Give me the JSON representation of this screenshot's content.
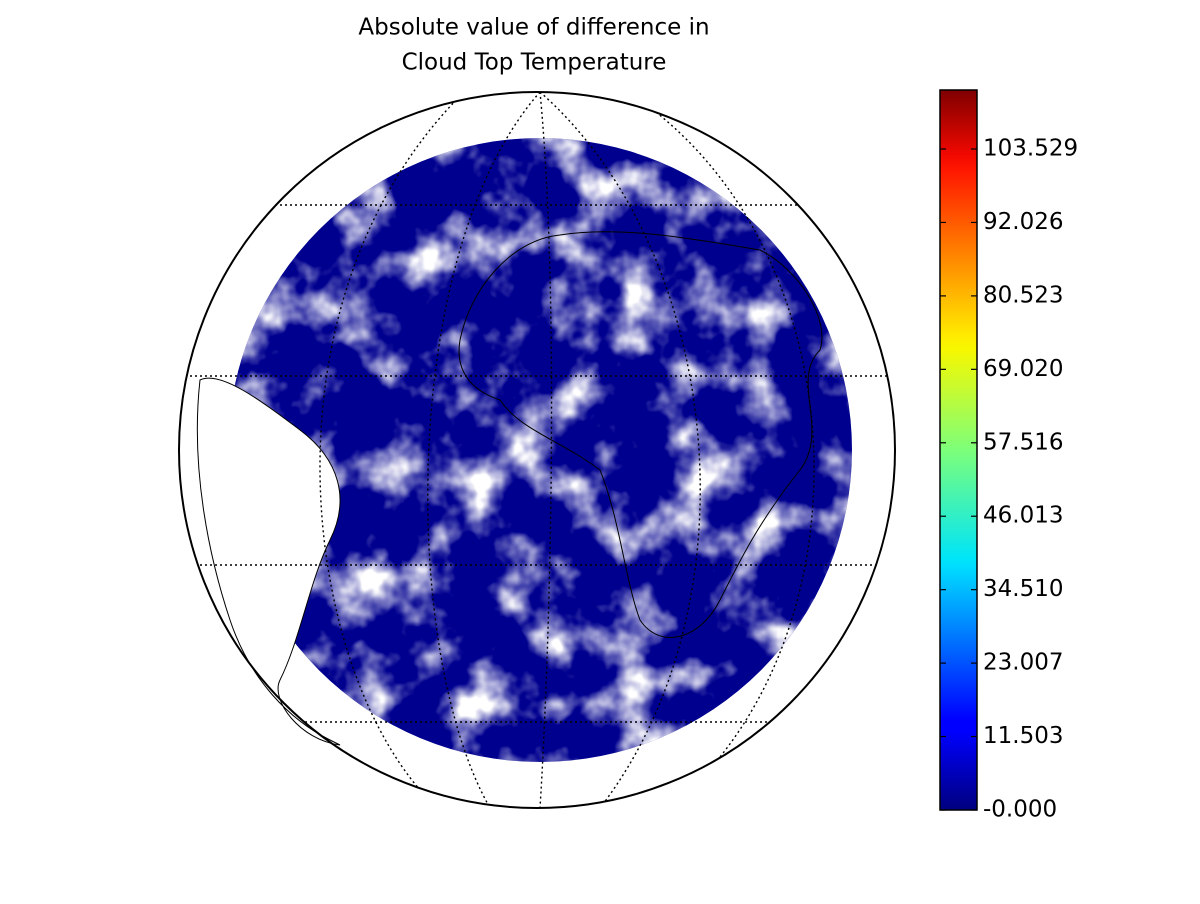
{
  "chart_data": {
    "type": "map",
    "title": [
      "Absolute value of difference in",
      "Cloud Top Temperature"
    ],
    "colormap": "jet",
    "clim": [
      0,
      112.77
    ],
    "cticks": [
      {
        "value": 0,
        "label": "-0.000"
      },
      11.503,
      23.007,
      {
        "value": 34.51,
        "label": "34.510"
      },
      46.013,
      57.516,
      {
        "value": 69.02,
        "label": "69.020"
      },
      80.523,
      92.026,
      103.529
    ]
  }
}
